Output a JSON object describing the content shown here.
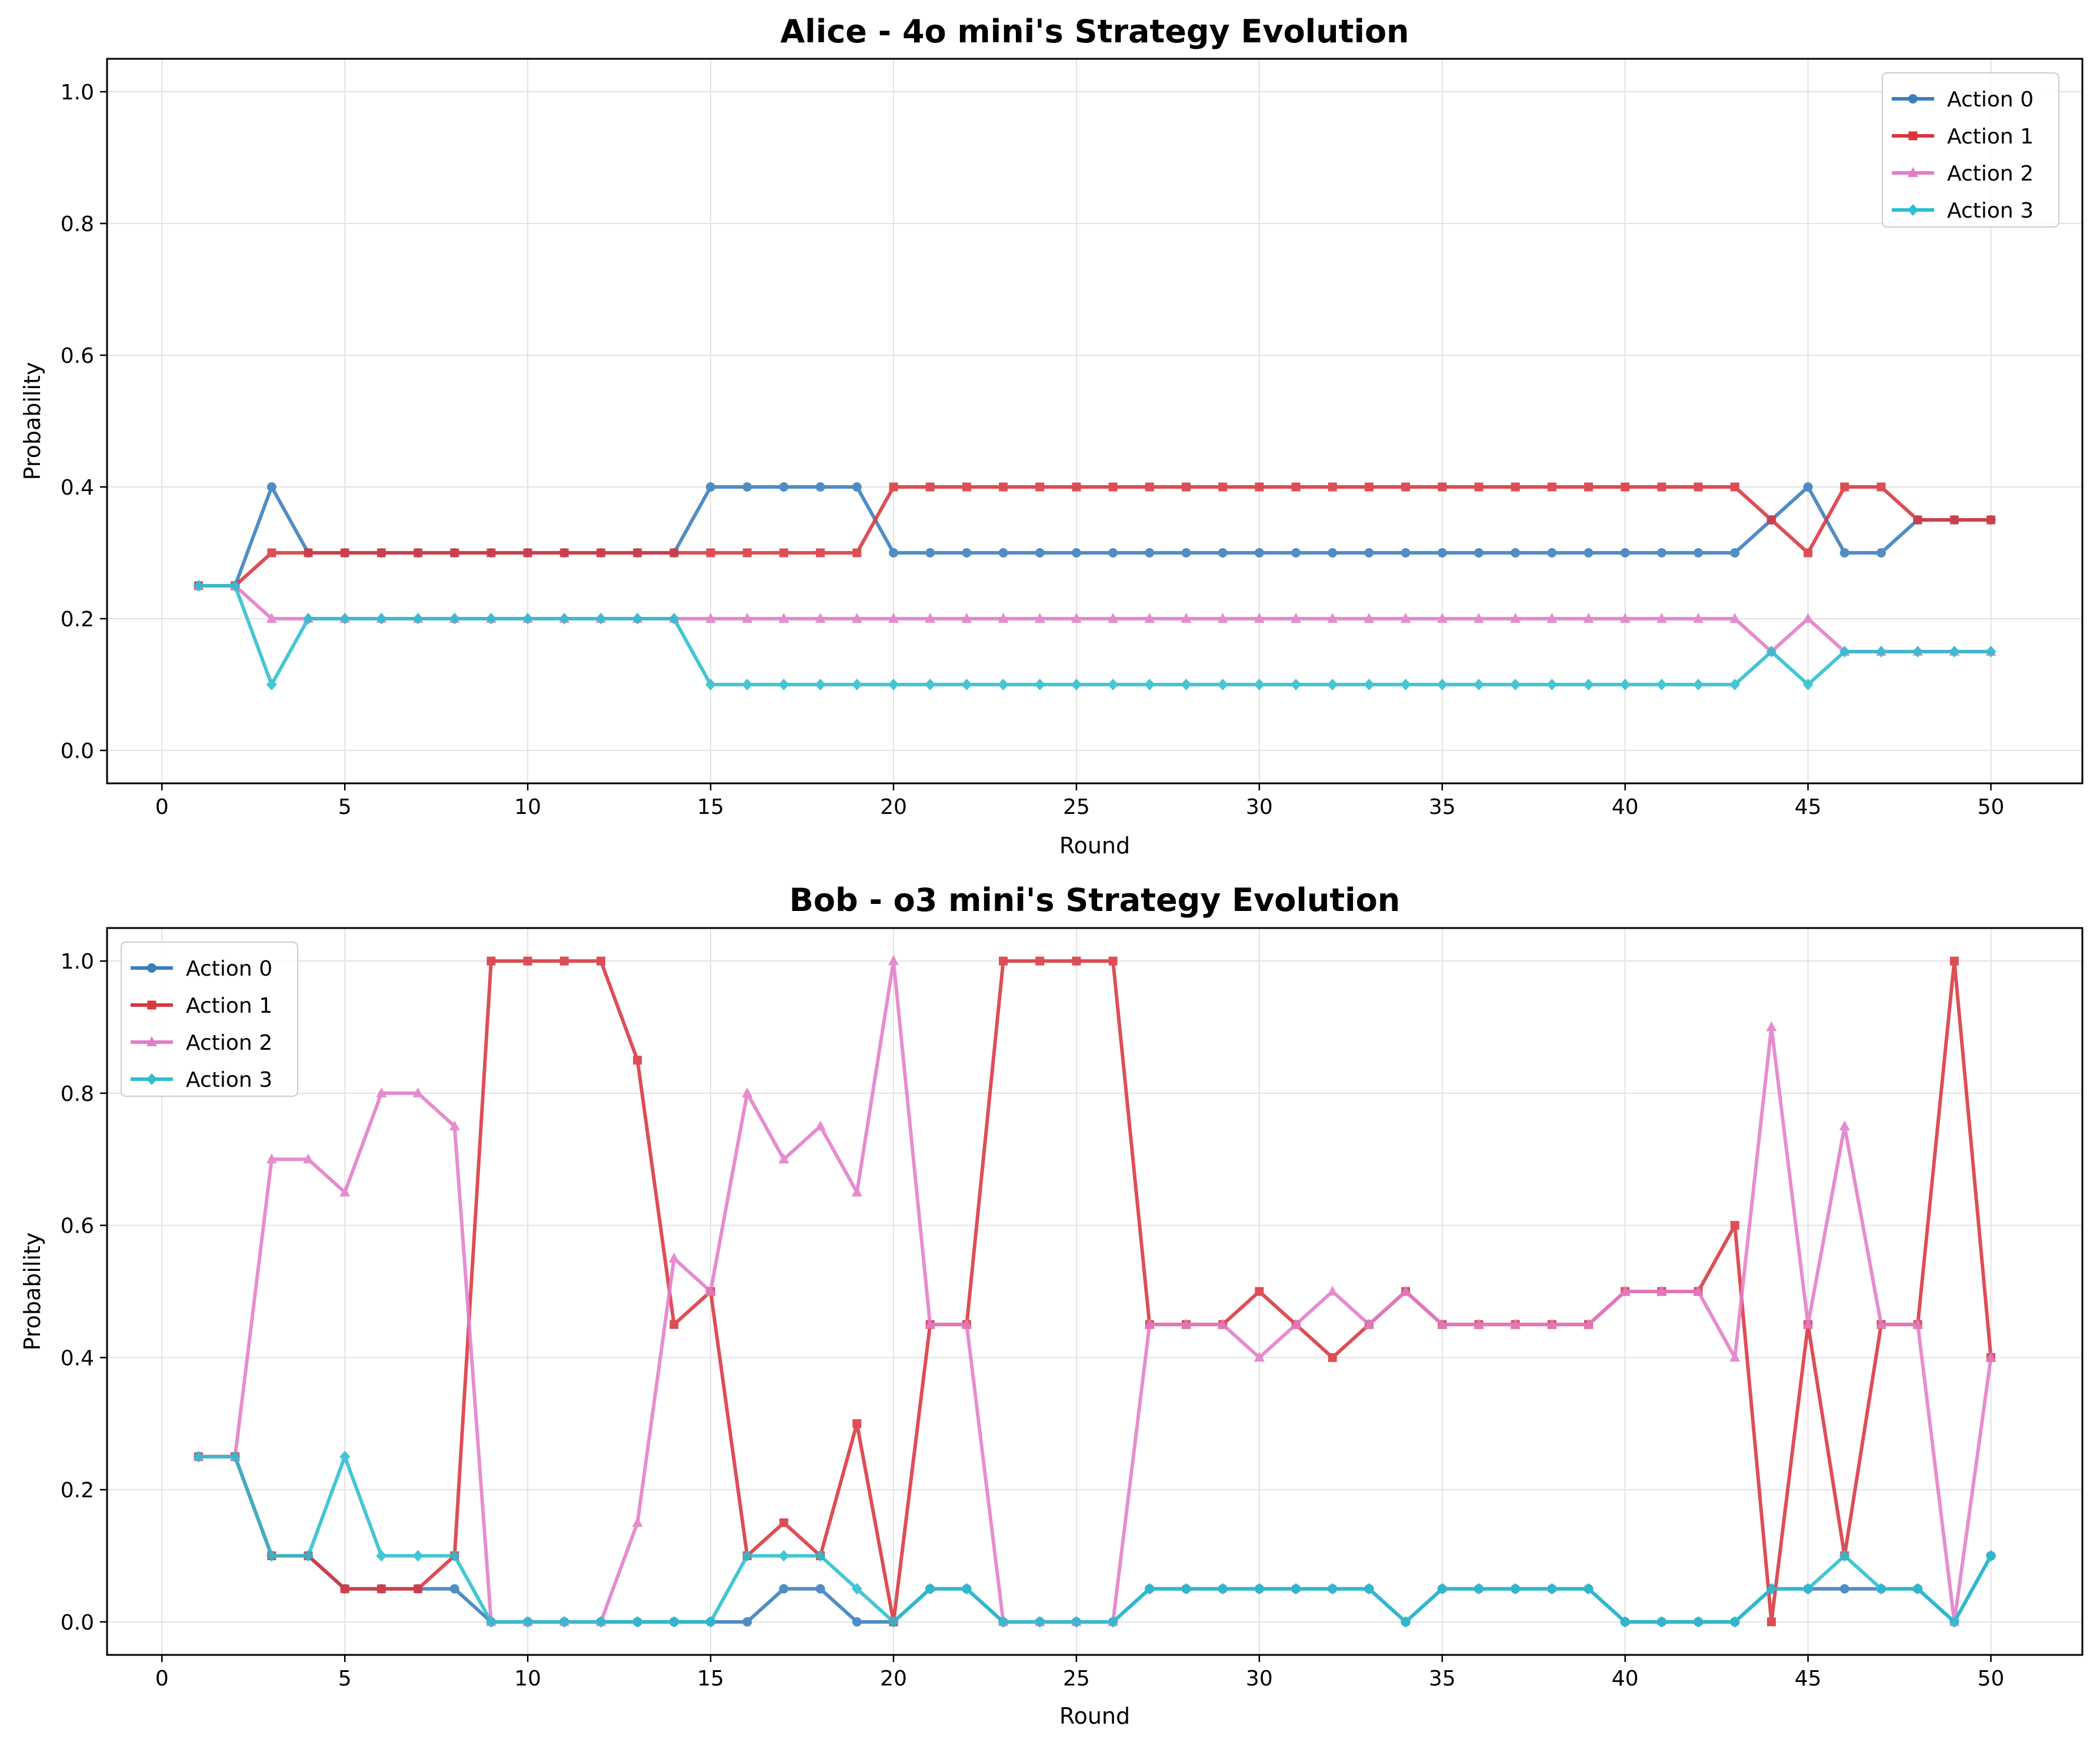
{
  "colors": {
    "action0": "#3a7ebd",
    "action1": "#d9363e",
    "action2": "#e27dc9",
    "action3": "#2bbfcf",
    "grid": "#e3e3e3",
    "axis": "#000000"
  },
  "chart_data": [
    {
      "type": "line",
      "title": "Alice - 4o mini's Strategy Evolution",
      "xlabel": "Round",
      "ylabel": "Probability",
      "xlim": [
        -1.5,
        52.5
      ],
      "ylim": [
        -0.05,
        1.05
      ],
      "xticks": [
        0,
        5,
        10,
        15,
        20,
        25,
        30,
        35,
        40,
        45,
        50
      ],
      "yticks": [
        0.0,
        0.2,
        0.4,
        0.6,
        0.8,
        1.0
      ],
      "xtick_labels": [
        "0",
        "5",
        "10",
        "15",
        "20",
        "25",
        "30",
        "35",
        "40",
        "45",
        "50"
      ],
      "ytick_labels": [
        "0.0",
        "0.2",
        "0.4",
        "0.6",
        "0.8",
        "1.0"
      ],
      "grid": true,
      "legend_position": "top-right",
      "x": [
        1,
        2,
        3,
        4,
        5,
        6,
        7,
        8,
        9,
        10,
        11,
        12,
        13,
        14,
        15,
        16,
        17,
        18,
        19,
        20,
        21,
        22,
        23,
        24,
        25,
        26,
        27,
        28,
        29,
        30,
        31,
        32,
        33,
        34,
        35,
        36,
        37,
        38,
        39,
        40,
        41,
        42,
        43,
        44,
        45,
        46,
        47,
        48,
        49,
        50
      ],
      "series": [
        {
          "name": "Action 0",
          "marker": "circle",
          "color_key": "action0",
          "values": [
            0.25,
            0.25,
            0.4,
            0.3,
            0.3,
            0.3,
            0.3,
            0.3,
            0.3,
            0.3,
            0.3,
            0.3,
            0.3,
            0.3,
            0.4,
            0.4,
            0.4,
            0.4,
            0.4,
            0.3,
            0.3,
            0.3,
            0.3,
            0.3,
            0.3,
            0.3,
            0.3,
            0.3,
            0.3,
            0.3,
            0.3,
            0.3,
            0.3,
            0.3,
            0.3,
            0.3,
            0.3,
            0.3,
            0.3,
            0.3,
            0.3,
            0.3,
            0.3,
            0.35,
            0.4,
            0.3,
            0.3,
            0.35,
            0.35,
            0.35
          ]
        },
        {
          "name": "Action 1",
          "marker": "square",
          "color_key": "action1",
          "values": [
            0.25,
            0.25,
            0.3,
            0.3,
            0.3,
            0.3,
            0.3,
            0.3,
            0.3,
            0.3,
            0.3,
            0.3,
            0.3,
            0.3,
            0.3,
            0.3,
            0.3,
            0.3,
            0.3,
            0.4,
            0.4,
            0.4,
            0.4,
            0.4,
            0.4,
            0.4,
            0.4,
            0.4,
            0.4,
            0.4,
            0.4,
            0.4,
            0.4,
            0.4,
            0.4,
            0.4,
            0.4,
            0.4,
            0.4,
            0.4,
            0.4,
            0.4,
            0.4,
            0.35,
            0.3,
            0.4,
            0.4,
            0.35,
            0.35,
            0.35
          ]
        },
        {
          "name": "Action 2",
          "marker": "triangle",
          "color_key": "action2",
          "values": [
            0.25,
            0.25,
            0.2,
            0.2,
            0.2,
            0.2,
            0.2,
            0.2,
            0.2,
            0.2,
            0.2,
            0.2,
            0.2,
            0.2,
            0.2,
            0.2,
            0.2,
            0.2,
            0.2,
            0.2,
            0.2,
            0.2,
            0.2,
            0.2,
            0.2,
            0.2,
            0.2,
            0.2,
            0.2,
            0.2,
            0.2,
            0.2,
            0.2,
            0.2,
            0.2,
            0.2,
            0.2,
            0.2,
            0.2,
            0.2,
            0.2,
            0.2,
            0.2,
            0.15,
            0.2,
            0.15,
            0.15,
            0.15,
            0.15,
            0.15
          ]
        },
        {
          "name": "Action 3",
          "marker": "diamond",
          "color_key": "action3",
          "values": [
            0.25,
            0.25,
            0.1,
            0.2,
            0.2,
            0.2,
            0.2,
            0.2,
            0.2,
            0.2,
            0.2,
            0.2,
            0.2,
            0.2,
            0.1,
            0.1,
            0.1,
            0.1,
            0.1,
            0.1,
            0.1,
            0.1,
            0.1,
            0.1,
            0.1,
            0.1,
            0.1,
            0.1,
            0.1,
            0.1,
            0.1,
            0.1,
            0.1,
            0.1,
            0.1,
            0.1,
            0.1,
            0.1,
            0.1,
            0.1,
            0.1,
            0.1,
            0.1,
            0.15,
            0.1,
            0.15,
            0.15,
            0.15,
            0.15,
            0.15
          ]
        }
      ]
    },
    {
      "type": "line",
      "title": "Bob - o3 mini's Strategy Evolution",
      "xlabel": "Round",
      "ylabel": "Probability",
      "xlim": [
        -1.5,
        52.5
      ],
      "ylim": [
        -0.05,
        1.05
      ],
      "xticks": [
        0,
        5,
        10,
        15,
        20,
        25,
        30,
        35,
        40,
        45,
        50
      ],
      "yticks": [
        0.0,
        0.2,
        0.4,
        0.6,
        0.8,
        1.0
      ],
      "xtick_labels": [
        "0",
        "5",
        "10",
        "15",
        "20",
        "25",
        "30",
        "35",
        "40",
        "45",
        "50"
      ],
      "ytick_labels": [
        "0.0",
        "0.2",
        "0.4",
        "0.6",
        "0.8",
        "1.0"
      ],
      "grid": true,
      "legend_position": "top-left",
      "x": [
        1,
        2,
        3,
        4,
        5,
        6,
        7,
        8,
        9,
        10,
        11,
        12,
        13,
        14,
        15,
        16,
        17,
        18,
        19,
        20,
        21,
        22,
        23,
        24,
        25,
        26,
        27,
        28,
        29,
        30,
        31,
        32,
        33,
        34,
        35,
        36,
        37,
        38,
        39,
        40,
        41,
        42,
        43,
        44,
        45,
        46,
        47,
        48,
        49,
        50
      ],
      "series": [
        {
          "name": "Action 0",
          "marker": "circle",
          "color_key": "action0",
          "values": [
            0.25,
            0.25,
            0.1,
            0.1,
            0.05,
            0.05,
            0.05,
            0.05,
            0,
            0,
            0,
            0,
            0,
            0,
            0,
            0,
            0.05,
            0.05,
            0,
            0,
            0.05,
            0.05,
            0,
            0,
            0,
            0,
            0.05,
            0.05,
            0.05,
            0.05,
            0.05,
            0.05,
            0.05,
            0,
            0.05,
            0.05,
            0.05,
            0.05,
            0.05,
            0,
            0,
            0,
            0,
            0.05,
            0.05,
            0.05,
            0.05,
            0.05,
            0,
            0.1
          ]
        },
        {
          "name": "Action 1",
          "marker": "square",
          "color_key": "action1",
          "values": [
            0.25,
            0.25,
            0.1,
            0.1,
            0.05,
            0.05,
            0.05,
            0.1,
            1,
            1,
            1,
            1,
            0.85,
            0.45,
            0.5,
            0.1,
            0.15,
            0.1,
            0.3,
            0,
            0.45,
            0.45,
            1,
            1,
            1,
            1,
            0.45,
            0.45,
            0.45,
            0.5,
            0.45,
            0.4,
            0.45,
            0.5,
            0.45,
            0.45,
            0.45,
            0.45,
            0.45,
            0.5,
            0.5,
            0.5,
            0.6,
            0,
            0.45,
            0.1,
            0.45,
            0.45,
            1,
            0.4
          ]
        },
        {
          "name": "Action 2",
          "marker": "triangle",
          "color_key": "action2",
          "values": [
            0.25,
            0.25,
            0.7,
            0.7,
            0.65,
            0.8,
            0.8,
            0.75,
            0,
            0,
            0,
            0,
            0.15,
            0.55,
            0.5,
            0.8,
            0.7,
            0.75,
            0.65,
            1,
            0.45,
            0.45,
            0,
            0,
            0,
            0,
            0.45,
            0.45,
            0.45,
            0.4,
            0.45,
            0.5,
            0.45,
            0.5,
            0.45,
            0.45,
            0.45,
            0.45,
            0.45,
            0.5,
            0.5,
            0.5,
            0.4,
            0.9,
            0.45,
            0.75,
            0.45,
            0.45,
            0,
            0.4
          ]
        },
        {
          "name": "Action 3",
          "marker": "diamond",
          "color_key": "action3",
          "values": [
            0.25,
            0.25,
            0.1,
            0.1,
            0.25,
            0.1,
            0.1,
            0.1,
            0,
            0,
            0,
            0,
            0,
            0,
            0,
            0.1,
            0.1,
            0.1,
            0.05,
            0,
            0.05,
            0.05,
            0,
            0,
            0,
            0,
            0.05,
            0.05,
            0.05,
            0.05,
            0.05,
            0.05,
            0.05,
            0,
            0.05,
            0.05,
            0.05,
            0.05,
            0.05,
            0,
            0,
            0,
            0,
            0.05,
            0.05,
            0.1,
            0.05,
            0.05,
            0,
            0.1
          ]
        }
      ]
    }
  ]
}
